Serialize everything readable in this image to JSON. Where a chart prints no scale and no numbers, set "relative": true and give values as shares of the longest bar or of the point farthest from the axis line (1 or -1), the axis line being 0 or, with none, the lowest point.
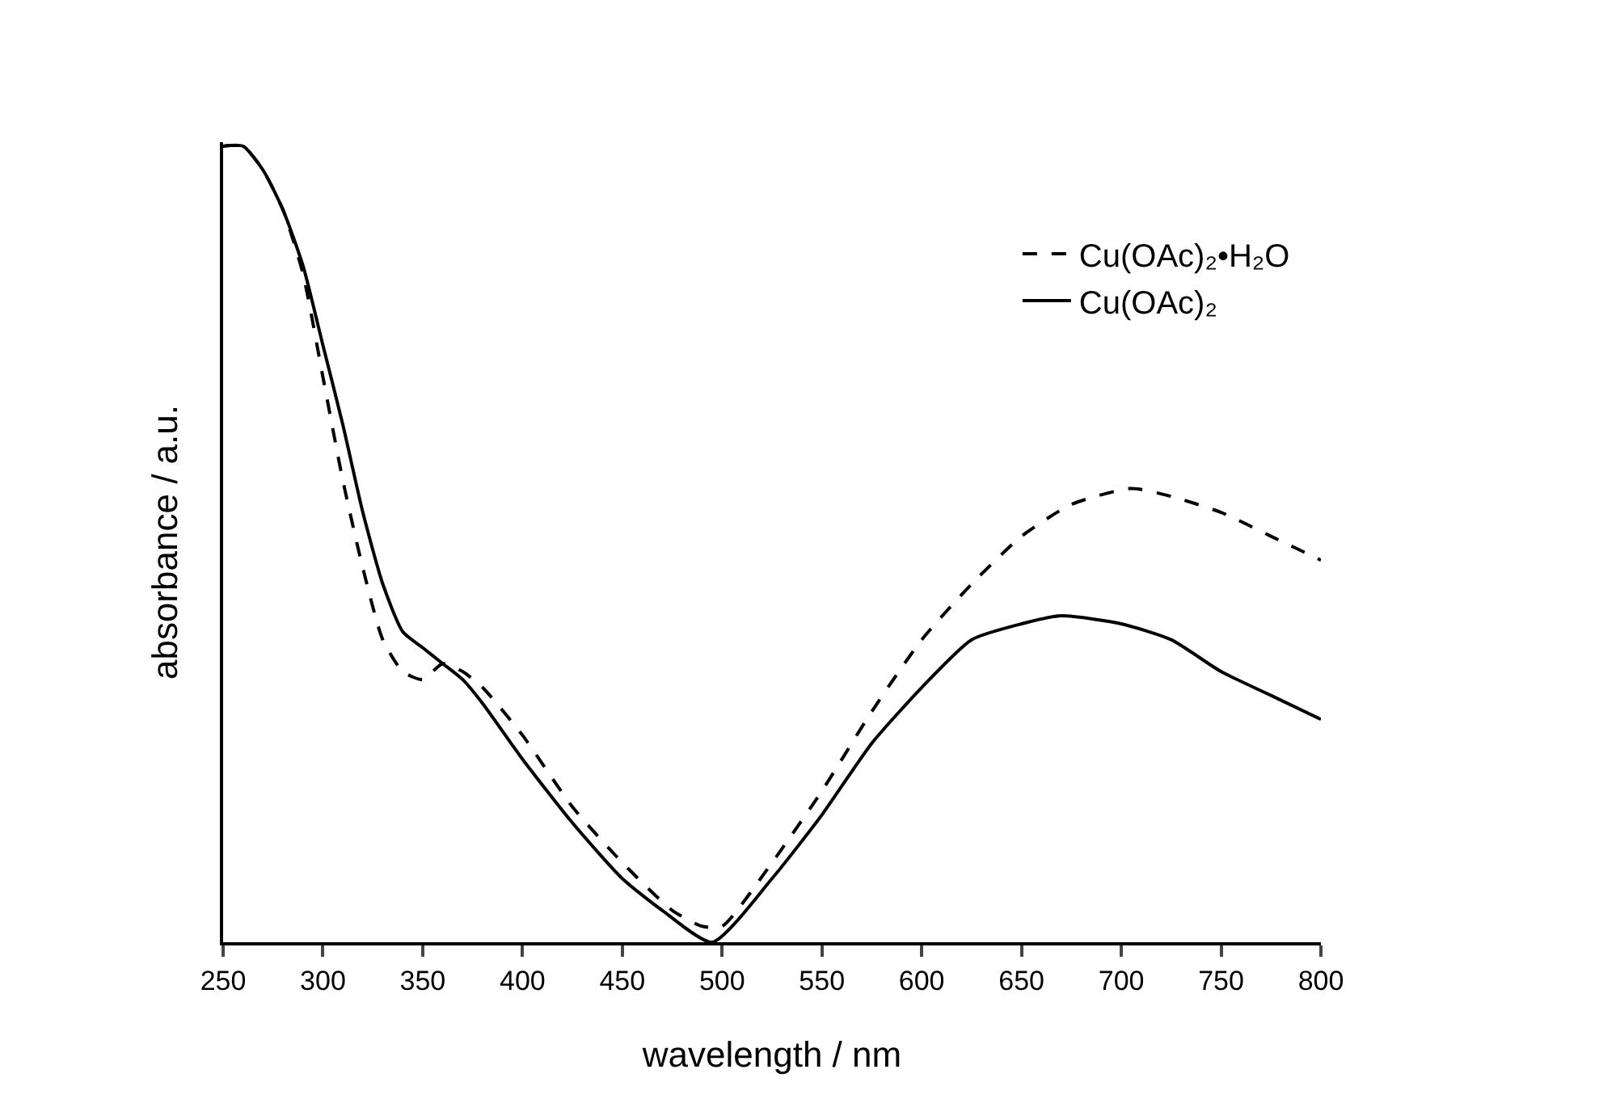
{
  "chart_data": {
    "type": "line",
    "xlabel": "wavelength / nm",
    "ylabel": "absorbance / a.u.",
    "relative": true,
    "xlim": [
      250,
      800
    ],
    "xticks": [
      250,
      300,
      350,
      400,
      450,
      500,
      550,
      600,
      650,
      700,
      750,
      800
    ],
    "grid": false,
    "legend": "top right",
    "marker": "none",
    "series": [
      {
        "name": "Cu(OAc)₂•H₂O",
        "color": "#000000",
        "line_style": "dashed",
        "x": [
          250,
          260,
          270,
          280,
          290,
          300,
          310,
          320,
          330,
          340,
          350,
          360,
          370,
          380,
          400,
          425,
          450,
          475,
          490,
          500,
          525,
          550,
          575,
          600,
          625,
          650,
          675,
          705,
          725,
          750,
          775,
          800
        ],
        "values": [
          1.0,
          1.0,
          0.97,
          0.92,
          0.84,
          0.71,
          0.58,
          0.47,
          0.38,
          0.34,
          0.33,
          0.35,
          0.34,
          0.32,
          0.26,
          0.17,
          0.1,
          0.04,
          0.02,
          0.02,
          0.1,
          0.19,
          0.29,
          0.38,
          0.45,
          0.51,
          0.55,
          0.57,
          0.56,
          0.54,
          0.51,
          0.48
        ]
      },
      {
        "name": "Cu(OAc)₂",
        "color": "#000000",
        "line_style": "solid",
        "x": [
          250,
          260,
          270,
          280,
          290,
          300,
          310,
          320,
          330,
          340,
          350,
          360,
          370,
          380,
          400,
          425,
          450,
          470,
          495,
          525,
          550,
          575,
          600,
          625,
          650,
          670,
          700,
          725,
          750,
          775,
          800
        ],
        "values": [
          1.0,
          1.0,
          0.97,
          0.92,
          0.85,
          0.75,
          0.65,
          0.54,
          0.45,
          0.39,
          0.37,
          0.35,
          0.33,
          0.3,
          0.23,
          0.15,
          0.08,
          0.04,
          0.0,
          0.08,
          0.16,
          0.25,
          0.32,
          0.38,
          0.4,
          0.41,
          0.4,
          0.38,
          0.34,
          0.31,
          0.28
        ]
      }
    ]
  }
}
